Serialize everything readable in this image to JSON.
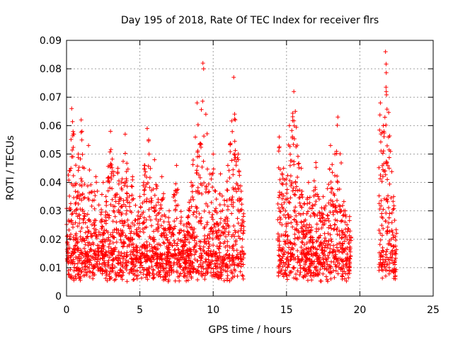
{
  "chart_data": {
    "type": "scatter",
    "title": "Day 195 of 2018, Rate Of TEC Index for receiver flrs",
    "xlabel": "GPS time / hours",
    "ylabel": "ROTI / TECUs",
    "xlim": [
      0,
      25
    ],
    "ylim": [
      0,
      0.09
    ],
    "xticks": [
      0,
      5,
      10,
      15,
      20,
      25
    ],
    "xtick_labels": [
      "0",
      "5",
      "10",
      "15",
      "20",
      "25"
    ],
    "yticks": [
      0,
      0.01,
      0.02,
      0.03,
      0.04,
      0.05,
      0.06,
      0.07,
      0.08,
      0.09
    ],
    "ytick_labels": [
      "0",
      "0.01",
      "0.02",
      "0.03",
      "0.04",
      "0.05",
      "0.06",
      "0.07",
      "0.08",
      "0.09"
    ],
    "grid": true,
    "marker": "+",
    "color": "#ff0000",
    "observation_windows_hours": [
      [
        0.0,
        12.1
      ],
      [
        14.4,
        19.4
      ],
      [
        21.3,
        22.5
      ]
    ],
    "series": [
      {
        "name": "ROTI",
        "x": [
          0.1,
          0.3,
          0.35,
          0.5,
          0.8,
          1.0,
          1.2,
          1.5,
          2.0,
          2.5,
          3.0,
          3.2,
          3.5,
          4.0,
          4.5,
          5.0,
          5.5,
          5.6,
          6.0,
          6.5,
          7.0,
          7.5,
          8.0,
          8.5,
          8.9,
          9.3,
          9.35,
          9.5,
          10.0,
          10.5,
          11.0,
          11.4,
          11.5,
          11.7,
          12.0,
          14.5,
          14.8,
          15.2,
          15.5,
          15.6,
          16.0,
          16.5,
          17.0,
          17.5,
          18.0,
          18.3,
          18.5,
          19.0,
          19.3,
          21.4,
          21.6,
          21.75,
          21.8,
          22.0,
          22.3
        ],
        "y": [
          0.018,
          0.045,
          0.066,
          0.057,
          0.05,
          0.062,
          0.045,
          0.053,
          0.042,
          0.04,
          0.058,
          0.03,
          0.045,
          0.057,
          0.042,
          0.035,
          0.059,
          0.055,
          0.048,
          0.042,
          0.03,
          0.046,
          0.025,
          0.04,
          0.068,
          0.082,
          0.08,
          0.064,
          0.05,
          0.043,
          0.046,
          0.077,
          0.062,
          0.05,
          0.02,
          0.056,
          0.045,
          0.06,
          0.072,
          0.065,
          0.045,
          0.04,
          0.047,
          0.035,
          0.053,
          0.05,
          0.063,
          0.03,
          0.028,
          0.068,
          0.06,
          0.086,
          0.072,
          0.045,
          0.035
        ]
      }
    ]
  }
}
